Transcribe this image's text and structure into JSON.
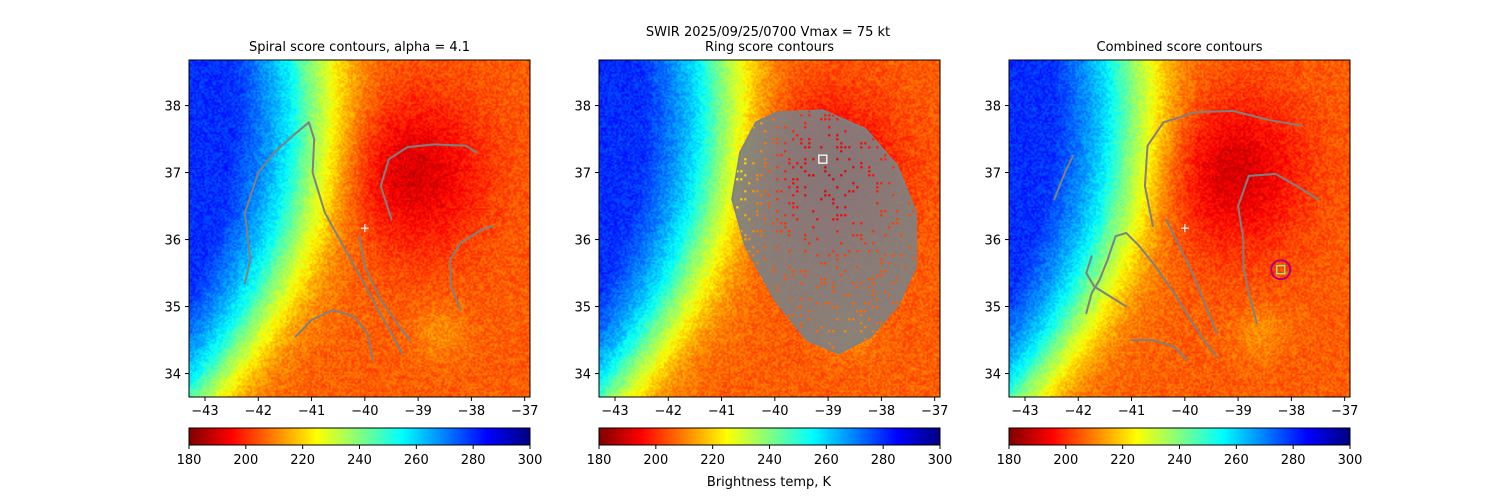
{
  "figure": {
    "suptitle_line1": "SWIR  2025/09/25/0700    Vmax = 75 kt",
    "colorbar_label": "Brightness temp, K"
  },
  "colormap": {
    "name": "jet_r",
    "stops": [
      "#7f0000",
      "#ff0000",
      "#ff8000",
      "#ffff00",
      "#80ff80",
      "#00ffff",
      "#0080ff",
      "#0000ff",
      "#00007f"
    ]
  },
  "chart_data": [
    {
      "type": "heatmap",
      "title": "Spiral score contours, alpha =  4.1",
      "xlim": [
        -43.3,
        -36.9
      ],
      "ylim": [
        33.65,
        38.68
      ],
      "xticks": [
        -43,
        -42,
        -41,
        -40,
        -39,
        -38,
        -37
      ],
      "yticks": [
        34,
        35,
        36,
        37,
        38
      ],
      "colorbar": {
        "vmin": 180,
        "vmax": 300,
        "ticks": [
          180,
          200,
          220,
          240,
          260,
          280,
          300
        ]
      },
      "contour_color": "#808080",
      "contours": [
        [
          [
            -42.25,
            35.35
          ],
          [
            -42.15,
            35.7
          ],
          [
            -42.25,
            36.4
          ],
          [
            -42.0,
            37.0
          ],
          [
            -41.7,
            37.3
          ],
          [
            -41.35,
            37.55
          ],
          [
            -41.05,
            37.75
          ],
          [
            -40.95,
            37.5
          ],
          [
            -40.98,
            37.0
          ],
          [
            -40.75,
            36.4
          ],
          [
            -40.4,
            35.9
          ],
          [
            -40.05,
            35.4
          ],
          [
            -39.75,
            34.95
          ],
          [
            -39.5,
            34.6
          ],
          [
            -39.3,
            34.3
          ]
        ],
        [
          [
            -40.1,
            36.05
          ],
          [
            -40.0,
            35.6
          ],
          [
            -39.7,
            35.1
          ],
          [
            -39.35,
            34.7
          ],
          [
            -39.15,
            34.5
          ]
        ],
        [
          [
            -39.5,
            36.3
          ],
          [
            -39.7,
            36.8
          ],
          [
            -39.55,
            37.2
          ],
          [
            -39.2,
            37.38
          ],
          [
            -38.7,
            37.42
          ],
          [
            -38.1,
            37.4
          ],
          [
            -37.9,
            37.3
          ]
        ],
        [
          [
            -38.2,
            34.95
          ],
          [
            -38.38,
            35.3
          ],
          [
            -38.4,
            35.7
          ],
          [
            -38.2,
            35.95
          ],
          [
            -37.8,
            36.15
          ],
          [
            -37.6,
            36.2
          ]
        ],
        [
          [
            -41.3,
            34.55
          ],
          [
            -41.0,
            34.8
          ],
          [
            -40.6,
            34.95
          ],
          [
            -40.2,
            34.85
          ],
          [
            -39.95,
            34.6
          ],
          [
            -39.85,
            34.2
          ]
        ]
      ],
      "markers": [
        {
          "shape": "plus",
          "x": -40.0,
          "y": 36.17,
          "color": "#ffffff"
        }
      ]
    },
    {
      "type": "heatmap",
      "title": "Ring score contours",
      "xlim": [
        -43.3,
        -36.9
      ],
      "ylim": [
        33.65,
        38.68
      ],
      "xticks": [
        -43,
        -42,
        -41,
        -40,
        -39,
        -38,
        -37
      ],
      "yticks": [
        34,
        35,
        36,
        37,
        38
      ],
      "colorbar": {
        "vmin": 180,
        "vmax": 300,
        "ticks": [
          180,
          200,
          220,
          240,
          260,
          280,
          300
        ]
      },
      "contour_color": "#808080",
      "contours": [],
      "ring_region": [
        [
          -39.95,
          37.9
        ],
        [
          -39.1,
          37.93
        ],
        [
          -38.3,
          37.65
        ],
        [
          -37.7,
          37.1
        ],
        [
          -37.35,
          36.4
        ],
        [
          -37.35,
          35.6
        ],
        [
          -37.7,
          35.0
        ],
        [
          -38.2,
          34.55
        ],
        [
          -38.8,
          34.3
        ],
        [
          -39.4,
          34.5
        ],
        [
          -40.0,
          35.1
        ],
        [
          -40.55,
          35.9
        ],
        [
          -40.8,
          36.6
        ],
        [
          -40.65,
          37.3
        ],
        [
          -40.35,
          37.75
        ]
      ],
      "markers": [
        {
          "shape": "square",
          "x": -39.1,
          "y": 37.2,
          "color": "#ffffff"
        }
      ]
    },
    {
      "type": "heatmap",
      "title": "Combined score contours",
      "xlim": [
        -43.3,
        -36.9
      ],
      "ylim": [
        33.65,
        38.68
      ],
      "xticks": [
        -43,
        -42,
        -41,
        -40,
        -39,
        -38,
        -37
      ],
      "yticks": [
        34,
        35,
        36,
        37,
        38
      ],
      "colorbar": {
        "vmin": 180,
        "vmax": 300,
        "ticks": [
          180,
          200,
          220,
          240,
          260,
          280,
          300
        ]
      },
      "contour_color": "#808080",
      "contours": [
        [
          [
            -42.45,
            36.6
          ],
          [
            -42.25,
            37.0
          ],
          [
            -42.1,
            37.25
          ]
        ],
        [
          [
            -41.85,
            34.9
          ],
          [
            -41.75,
            35.2
          ],
          [
            -41.6,
            35.4
          ],
          [
            -41.45,
            35.7
          ],
          [
            -41.3,
            36.05
          ],
          [
            -41.1,
            36.1
          ],
          [
            -40.85,
            35.9
          ],
          [
            -40.55,
            35.6
          ],
          [
            -40.2,
            35.2
          ],
          [
            -39.85,
            34.75
          ],
          [
            -39.6,
            34.45
          ],
          [
            -39.4,
            34.25
          ]
        ],
        [
          [
            -41.1,
            35.0
          ],
          [
            -41.4,
            35.15
          ],
          [
            -41.7,
            35.3
          ],
          [
            -41.85,
            35.5
          ],
          [
            -41.75,
            35.75
          ]
        ],
        [
          [
            -41.0,
            34.5
          ],
          [
            -40.6,
            34.5
          ],
          [
            -40.2,
            34.4
          ],
          [
            -39.95,
            34.2
          ]
        ],
        [
          [
            -40.6,
            36.2
          ],
          [
            -40.75,
            36.8
          ],
          [
            -40.7,
            37.4
          ],
          [
            -40.4,
            37.75
          ],
          [
            -39.8,
            37.9
          ],
          [
            -39.1,
            37.92
          ],
          [
            -38.4,
            37.78
          ],
          [
            -37.8,
            37.7
          ]
        ],
        [
          [
            -40.35,
            36.3
          ],
          [
            -40.1,
            35.9
          ],
          [
            -39.8,
            35.4
          ],
          [
            -39.6,
            35.0
          ],
          [
            -39.4,
            34.6
          ]
        ],
        [
          [
            -38.65,
            34.75
          ],
          [
            -38.8,
            35.2
          ],
          [
            -38.9,
            35.6
          ],
          [
            -38.9,
            36.0
          ],
          [
            -39.0,
            36.5
          ],
          [
            -38.8,
            36.95
          ],
          [
            -38.3,
            36.98
          ],
          [
            -37.9,
            36.8
          ],
          [
            -37.5,
            36.6
          ]
        ]
      ],
      "markers": [
        {
          "shape": "plus",
          "x": -40.0,
          "y": 36.17,
          "color": "#ffffff"
        },
        {
          "shape": "square",
          "x": -38.2,
          "y": 35.55,
          "color": "#80ff80"
        },
        {
          "shape": "circle",
          "x": -38.2,
          "y": 35.55,
          "color": "#b0007a"
        }
      ]
    }
  ]
}
